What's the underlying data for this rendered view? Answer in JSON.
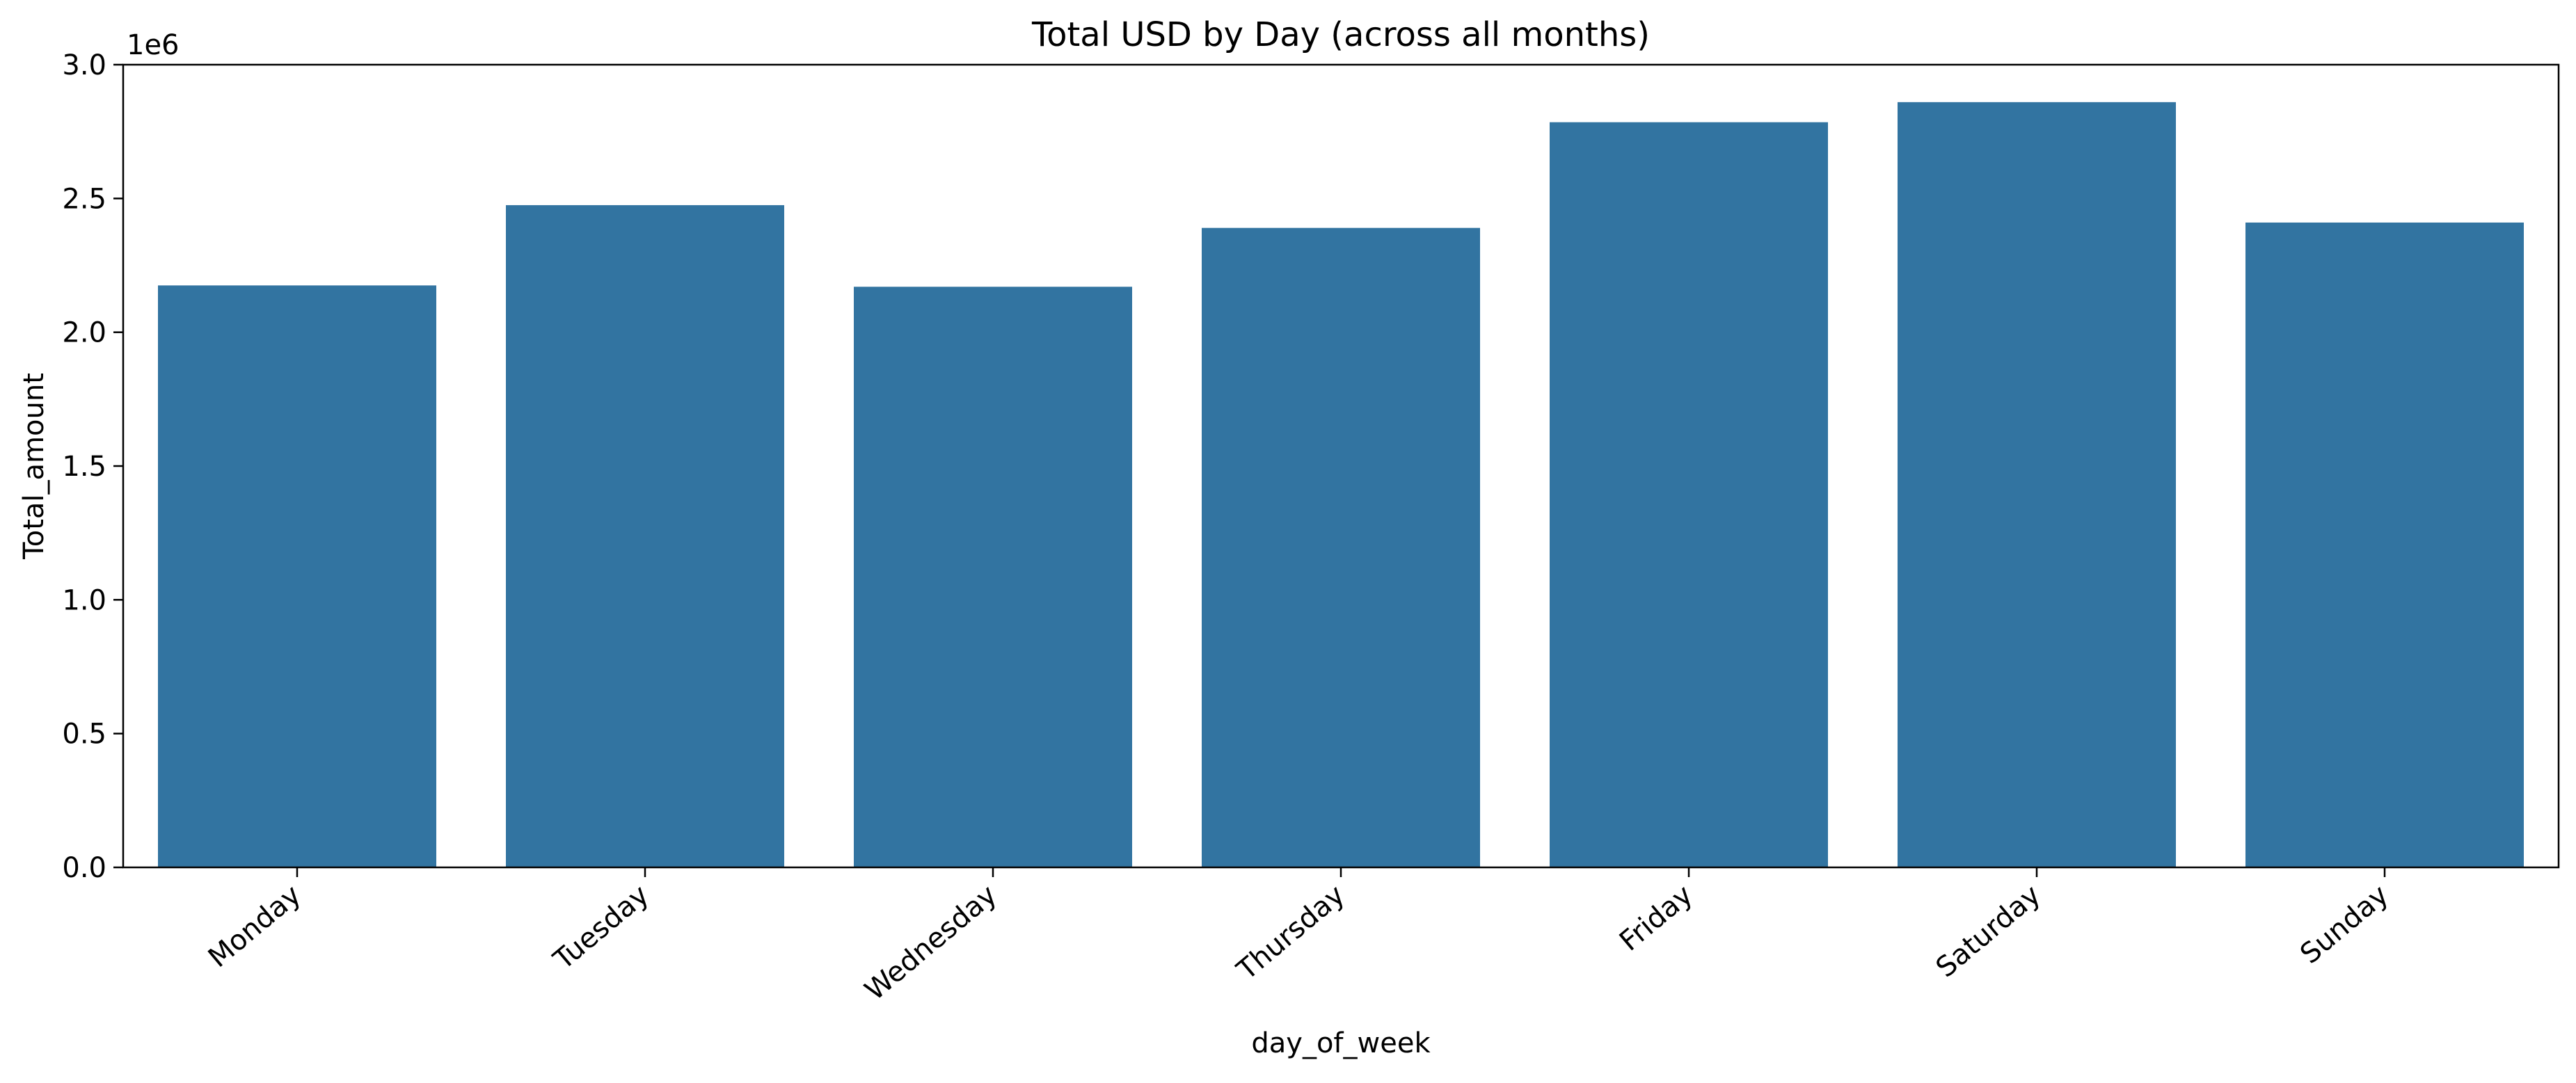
{
  "colors": {
    "bar": "#3274a1",
    "axis": "#000000",
    "background": "#ffffff"
  },
  "chart_data": {
    "type": "bar",
    "title": "Total USD by Day (across all months)",
    "xlabel": "day_of_week",
    "ylabel": "Total_amount",
    "y_offset_label": "1e6",
    "categories": [
      "Monday",
      "Tuesday",
      "Wednesday",
      "Thursday",
      "Friday",
      "Saturday",
      "Sunday"
    ],
    "values": [
      2.175,
      2.475,
      2.17,
      2.39,
      2.785,
      2.86,
      2.41
    ],
    "ylim": [
      0,
      3.0
    ],
    "yticks": [
      0.0,
      0.5,
      1.0,
      1.5,
      2.0,
      2.5,
      3.0
    ],
    "ytick_labels": [
      "0.0",
      "0.5",
      "1.0",
      "1.5",
      "2.0",
      "2.5",
      "3.0"
    ],
    "x_tick_rotation_deg": 40,
    "grid": false,
    "legend": "none"
  }
}
